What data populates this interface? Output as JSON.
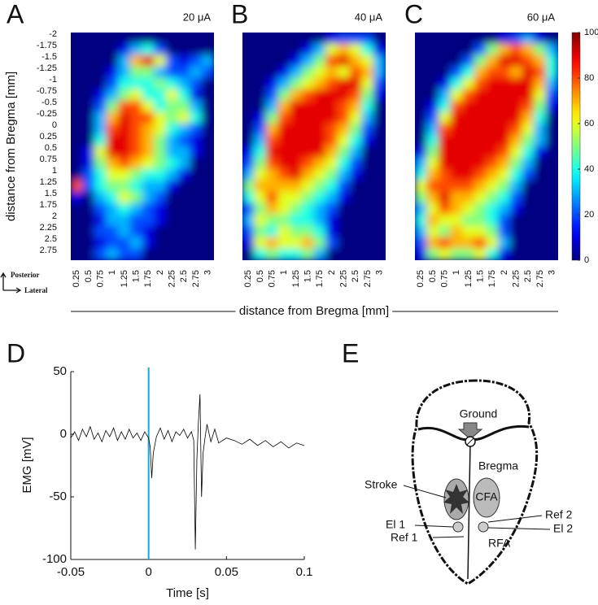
{
  "figure": {
    "xlabel": "distance from Bregma [mm]",
    "orientation": {
      "vertical": "Posterior",
      "horizontal": "Lateral"
    }
  },
  "chart_data": [
    {
      "type": "heatmap",
      "panel_label": "A",
      "title": "20 μA",
      "ylabel": "distance from Bregma [mm]",
      "x": [
        0.25,
        0.5,
        0.75,
        1,
        1.25,
        1.5,
        1.75,
        2,
        2.25,
        2.5,
        2.75,
        3
      ],
      "y": [
        -2,
        -1.75,
        -1.5,
        -1.25,
        -1,
        -0.75,
        -0.5,
        -0.25,
        0,
        0.25,
        0.5,
        0.75,
        1,
        1.25,
        1.5,
        1.75,
        2,
        2.25,
        2.5,
        2.75
      ],
      "colormap": "jet",
      "zlim": [
        0,
        100
      ],
      "values": [
        [
          0,
          0,
          0,
          0,
          0,
          0,
          0,
          0,
          0,
          0,
          0,
          0
        ],
        [
          0,
          0,
          0,
          0,
          10,
          30,
          40,
          20,
          0,
          0,
          0,
          0
        ],
        [
          0,
          0,
          0,
          0,
          30,
          70,
          90,
          60,
          20,
          10,
          20,
          30
        ],
        [
          0,
          0,
          0,
          10,
          30,
          50,
          50,
          30,
          20,
          20,
          30,
          20
        ],
        [
          0,
          0,
          0,
          20,
          40,
          40,
          40,
          50,
          40,
          30,
          20,
          0
        ],
        [
          0,
          0,
          10,
          30,
          50,
          60,
          40,
          40,
          60,
          40,
          10,
          0
        ],
        [
          0,
          0,
          20,
          50,
          80,
          80,
          60,
          40,
          50,
          50,
          30,
          0
        ],
        [
          0,
          0,
          30,
          70,
          90,
          80,
          80,
          60,
          50,
          60,
          40,
          0
        ],
        [
          0,
          0,
          30,
          80,
          90,
          80,
          70,
          60,
          40,
          30,
          20,
          0
        ],
        [
          0,
          0,
          40,
          90,
          90,
          80,
          70,
          50,
          30,
          20,
          10,
          0
        ],
        [
          0,
          10,
          60,
          90,
          90,
          80,
          70,
          50,
          30,
          30,
          10,
          0
        ],
        [
          0,
          10,
          50,
          70,
          80,
          70,
          60,
          50,
          40,
          30,
          0,
          0
        ],
        [
          0,
          20,
          40,
          60,
          60,
          50,
          40,
          40,
          30,
          10,
          0,
          0
        ],
        [
          80,
          20,
          40,
          50,
          50,
          40,
          30,
          30,
          10,
          0,
          0,
          0
        ],
        [
          10,
          0,
          30,
          40,
          60,
          50,
          30,
          20,
          0,
          0,
          0,
          0
        ],
        [
          0,
          0,
          20,
          30,
          40,
          30,
          20,
          10,
          0,
          0,
          0,
          0
        ],
        [
          0,
          0,
          10,
          30,
          30,
          20,
          20,
          10,
          0,
          0,
          0,
          0
        ],
        [
          0,
          0,
          20,
          20,
          30,
          20,
          10,
          0,
          0,
          0,
          0,
          0
        ],
        [
          0,
          0,
          10,
          20,
          20,
          30,
          10,
          0,
          0,
          0,
          0,
          0
        ],
        [
          0,
          0,
          20,
          30,
          20,
          20,
          0,
          0,
          0,
          0,
          0,
          0
        ]
      ]
    },
    {
      "type": "heatmap",
      "panel_label": "B",
      "title": "40 μA",
      "x": [
        0.25,
        0.5,
        0.75,
        1,
        1.25,
        1.5,
        1.75,
        2,
        2.25,
        2.5,
        2.75,
        3
      ],
      "colormap": "jet",
      "zlim": [
        0,
        100
      ],
      "values": [
        [
          0,
          0,
          0,
          0,
          0,
          0,
          0,
          10,
          20,
          20,
          20,
          0
        ],
        [
          0,
          0,
          0,
          0,
          0,
          10,
          30,
          60,
          70,
          60,
          40,
          10
        ],
        [
          0,
          0,
          0,
          0,
          10,
          30,
          50,
          80,
          90,
          70,
          60,
          30
        ],
        [
          0,
          0,
          0,
          10,
          30,
          50,
          60,
          70,
          60,
          80,
          70,
          30
        ],
        [
          0,
          0,
          10,
          30,
          50,
          60,
          70,
          80,
          90,
          90,
          60,
          20
        ],
        [
          0,
          0,
          20,
          50,
          70,
          80,
          90,
          90,
          90,
          80,
          50,
          10
        ],
        [
          0,
          0,
          30,
          70,
          90,
          90,
          90,
          90,
          80,
          70,
          40,
          0
        ],
        [
          0,
          10,
          50,
          80,
          90,
          90,
          90,
          90,
          80,
          60,
          30,
          0
        ],
        [
          0,
          20,
          70,
          90,
          90,
          90,
          90,
          80,
          70,
          50,
          20,
          0
        ],
        [
          0,
          30,
          80,
          90,
          90,
          90,
          90,
          80,
          60,
          40,
          10,
          0
        ],
        [
          10,
          40,
          90,
          90,
          90,
          90,
          90,
          70,
          50,
          30,
          0,
          0
        ],
        [
          20,
          50,
          80,
          90,
          90,
          80,
          70,
          60,
          40,
          20,
          0,
          0
        ],
        [
          30,
          60,
          70,
          80,
          90,
          70,
          60,
          50,
          30,
          10,
          0,
          0
        ],
        [
          50,
          70,
          70,
          70,
          70,
          60,
          50,
          40,
          20,
          0,
          0,
          0
        ],
        [
          40,
          60,
          80,
          60,
          60,
          50,
          40,
          30,
          10,
          0,
          0,
          0
        ],
        [
          20,
          50,
          70,
          60,
          50,
          40,
          30,
          20,
          0,
          0,
          0,
          0
        ],
        [
          30,
          60,
          50,
          50,
          40,
          40,
          30,
          10,
          0,
          0,
          0,
          0
        ],
        [
          20,
          50,
          40,
          60,
          50,
          50,
          40,
          10,
          0,
          0,
          0,
          0
        ],
        [
          10,
          60,
          70,
          60,
          60,
          70,
          50,
          20,
          0,
          0,
          0,
          0
        ],
        [
          0,
          40,
          50,
          40,
          40,
          50,
          30,
          0,
          0,
          0,
          0,
          0
        ]
      ]
    },
    {
      "type": "heatmap",
      "panel_label": "C",
      "title": "60 μA",
      "x": [
        0.25,
        0.5,
        0.75,
        1,
        1.25,
        1.5,
        1.75,
        2,
        2.25,
        2.5,
        2.75,
        3
      ],
      "colormap": "jet",
      "zlim": [
        0,
        100
      ],
      "zticks": [
        0,
        20,
        40,
        60,
        80,
        100
      ],
      "colorbar": true,
      "values": [
        [
          0,
          0,
          0,
          0,
          0,
          0,
          0,
          10,
          20,
          30,
          10,
          0
        ],
        [
          0,
          0,
          0,
          0,
          0,
          20,
          50,
          70,
          80,
          70,
          50,
          30
        ],
        [
          0,
          0,
          0,
          0,
          20,
          50,
          70,
          90,
          90,
          80,
          70,
          40
        ],
        [
          0,
          0,
          0,
          20,
          40,
          70,
          80,
          80,
          70,
          90,
          80,
          40
        ],
        [
          0,
          0,
          10,
          40,
          60,
          80,
          90,
          90,
          90,
          90,
          70,
          30
        ],
        [
          0,
          0,
          30,
          60,
          80,
          90,
          90,
          90,
          90,
          90,
          60,
          20
        ],
        [
          0,
          10,
          40,
          80,
          90,
          90,
          90,
          90,
          90,
          80,
          50,
          10
        ],
        [
          0,
          20,
          60,
          90,
          90,
          90,
          90,
          90,
          90,
          70,
          40,
          0
        ],
        [
          0,
          30,
          80,
          90,
          90,
          90,
          90,
          90,
          80,
          60,
          30,
          0
        ],
        [
          0,
          40,
          90,
          90,
          90,
          90,
          90,
          90,
          70,
          50,
          30,
          0
        ],
        [
          10,
          50,
          90,
          90,
          90,
          90,
          90,
          80,
          60,
          40,
          10,
          0
        ],
        [
          30,
          60,
          90,
          90,
          90,
          90,
          80,
          70,
          50,
          30,
          0,
          0
        ],
        [
          40,
          70,
          80,
          90,
          90,
          80,
          70,
          60,
          40,
          20,
          0,
          0
        ],
        [
          60,
          80,
          80,
          80,
          80,
          70,
          60,
          50,
          30,
          0,
          0,
          0
        ],
        [
          50,
          70,
          90,
          70,
          70,
          60,
          50,
          40,
          20,
          0,
          0,
          0
        ],
        [
          30,
          60,
          80,
          70,
          60,
          50,
          40,
          30,
          10,
          0,
          0,
          0
        ],
        [
          40,
          70,
          60,
          60,
          50,
          50,
          40,
          20,
          0,
          0,
          0,
          0
        ],
        [
          30,
          60,
          50,
          70,
          60,
          60,
          50,
          20,
          0,
          0,
          0,
          0
        ],
        [
          20,
          70,
          80,
          70,
          70,
          80,
          60,
          30,
          0,
          0,
          0,
          0
        ],
        [
          10,
          50,
          60,
          50,
          50,
          60,
          40,
          10,
          0,
          0,
          0,
          0
        ]
      ]
    },
    {
      "type": "line",
      "panel_label": "D",
      "xlabel": "Time [s]",
      "ylabel": "EMG [mV]",
      "xlim": [
        -0.05,
        0.1
      ],
      "xticks": [
        -0.05,
        0,
        0.05,
        0.1
      ],
      "ylim": [
        -100,
        50
      ],
      "yticks": [
        -100,
        -50,
        0,
        50
      ],
      "color": "#000000",
      "vlines": [
        0
      ],
      "vline_color": "#1aa7d6",
      "x": [
        -0.05,
        -0.0475,
        -0.045,
        -0.0425,
        -0.04,
        -0.0375,
        -0.035,
        -0.0325,
        -0.03,
        -0.0275,
        -0.025,
        -0.0225,
        -0.02,
        -0.0175,
        -0.015,
        -0.0125,
        -0.01,
        -0.0075,
        -0.005,
        -0.0025,
        0,
        0.001,
        0.002,
        0.003,
        0.005,
        0.0075,
        0.01,
        0.0125,
        0.015,
        0.0175,
        0.02,
        0.0225,
        0.025,
        0.0275,
        0.029,
        0.03,
        0.031,
        0.032,
        0.033,
        0.034,
        0.035,
        0.036,
        0.0375,
        0.04,
        0.0425,
        0.045,
        0.05,
        0.055,
        0.06,
        0.065,
        0.07,
        0.075,
        0.08,
        0.085,
        0.09,
        0.095,
        0.1
      ],
      "values": [
        -3,
        2,
        -5,
        4,
        -2,
        6,
        -4,
        1,
        -6,
        3,
        -2,
        5,
        -5,
        2,
        -4,
        4,
        -3,
        1,
        -5,
        2,
        -3,
        -10,
        -35,
        -15,
        -2,
        5,
        -4,
        3,
        -6,
        2,
        -1,
        4,
        -3,
        2,
        -5,
        -92,
        -20,
        10,
        32,
        -50,
        -15,
        -5,
        8,
        -6,
        4,
        -7,
        -3,
        -5,
        -8,
        -4,
        -9,
        -5,
        -10,
        -6,
        -11,
        -7,
        -9
      ]
    }
  ],
  "diagram": {
    "panel_label": "E",
    "labels": {
      "ground": "Ground",
      "bregma": "Bregma",
      "stroke": "Stroke",
      "cfa": "CFA",
      "ref2": "Ref 2",
      "el1": "El 1",
      "el2": "El 2",
      "ref1": "Ref 1",
      "rfa": "RFA"
    }
  }
}
